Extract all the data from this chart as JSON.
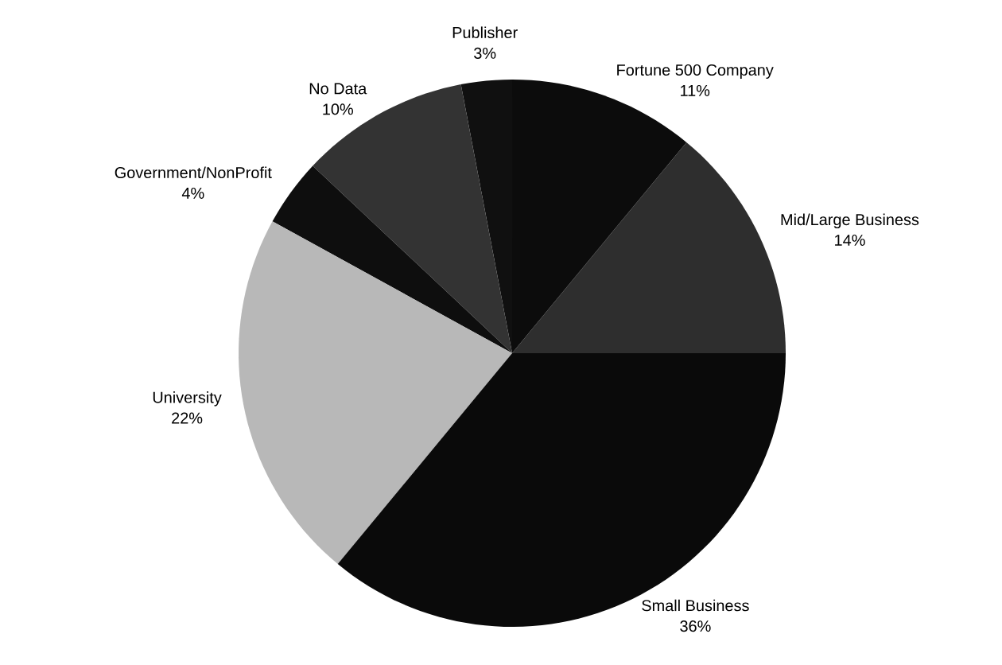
{
  "chart_data": {
    "type": "pie",
    "categories": [
      "Mid/Large Business",
      "Fortune 500 Company",
      "Publisher",
      "No Data",
      "Government/NonProfit",
      "University",
      "Small Business"
    ],
    "values": [
      14,
      11,
      3,
      10,
      4,
      22,
      36
    ],
    "value_labels": [
      "14%",
      "11%",
      "3%",
      "10%",
      "4%",
      "22%",
      "36%"
    ],
    "colors": [
      "#2e2e2e",
      "#0c0c0c",
      "#101010",
      "#333333",
      "#0e0e0e",
      "#b8b8b8",
      "#0a0a0a"
    ]
  }
}
